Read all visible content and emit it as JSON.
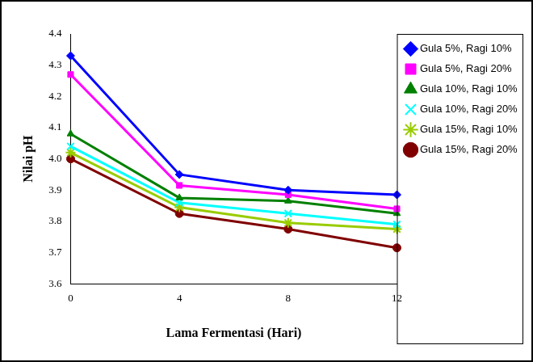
{
  "chart_data": {
    "type": "line",
    "x_label": "Lama Fermentasi (Hari)",
    "y_label": "Nilai pH",
    "categories": [
      "0",
      "4",
      "8",
      "12"
    ],
    "ylim": [
      3.6,
      4.4
    ],
    "yticks": [
      3.6,
      3.7,
      3.8,
      3.9,
      4.0,
      4.1,
      4.2,
      4.3,
      4.4
    ],
    "grid": false,
    "legend": "right",
    "series": [
      {
        "name": "Gula 5%, Ragi 10%",
        "color": "#0000ff",
        "marker": "diamond",
        "values": [
          4.33,
          3.95,
          3.9,
          3.885
        ]
      },
      {
        "name": "Gula 5%, Ragi 20%",
        "color": "#ff00ff",
        "marker": "square",
        "values": [
          4.27,
          3.915,
          3.885,
          3.84
        ]
      },
      {
        "name": "Gula 10%, Ragi 10%",
        "color": "#008000",
        "marker": "triangle",
        "values": [
          4.08,
          3.875,
          3.865,
          3.825
        ]
      },
      {
        "name": "Gula 10%, Ragi 20%",
        "color": "#00ffff",
        "marker": "x",
        "values": [
          4.04,
          3.86,
          3.825,
          3.79
        ]
      },
      {
        "name": "Gula 15%, Ragi 10%",
        "color": "#99cc00",
        "marker": "star",
        "values": [
          4.02,
          3.845,
          3.795,
          3.775
        ]
      },
      {
        "name": "Gula 15%, Ragi 20%",
        "color": "#800000",
        "marker": "circle",
        "values": [
          4.0,
          3.825,
          3.775,
          3.715
        ]
      }
    ]
  }
}
